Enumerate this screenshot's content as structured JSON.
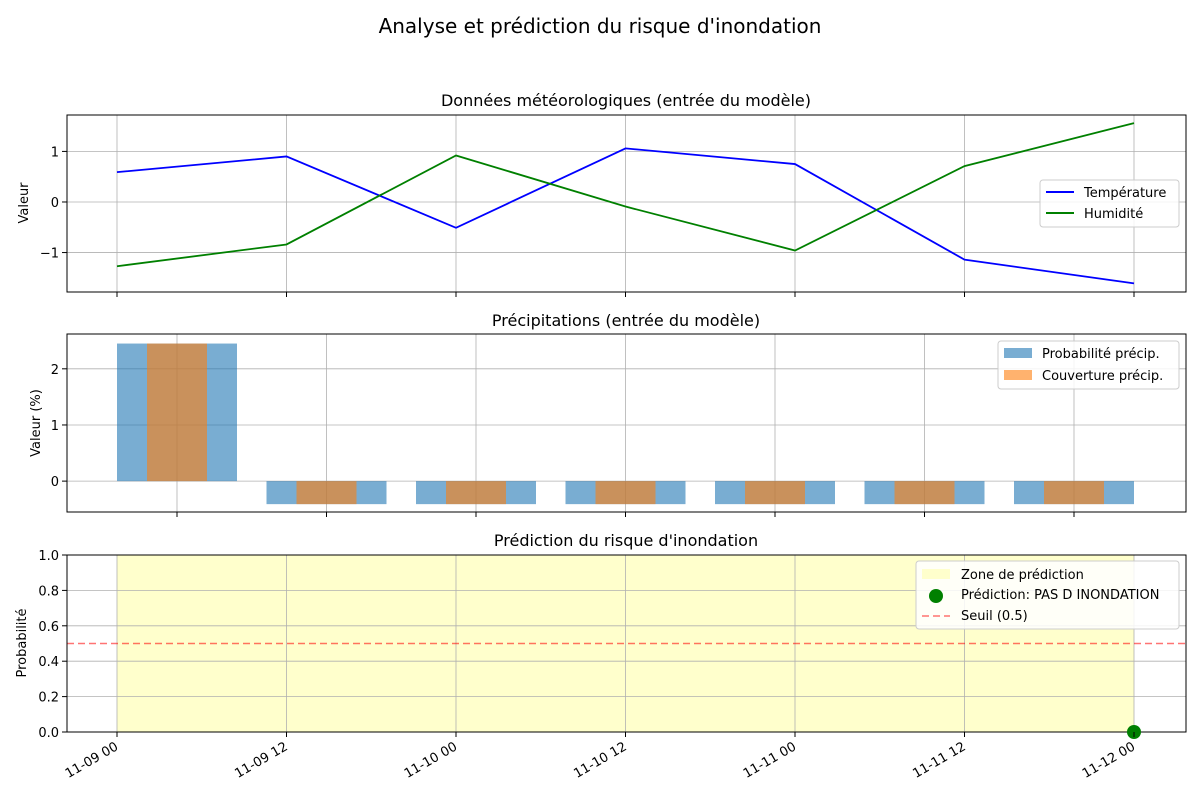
{
  "suptitle": "Analyse et prédiction du risque d'inondation",
  "x_tick_labels": [
    "11-09 00",
    "11-09 12",
    "11-10 00",
    "11-10 12",
    "11-11 00",
    "11-11 12",
    "11-12 00"
  ],
  "chart_data": [
    {
      "type": "line",
      "title": "Données météorologiques (entrée du modèle)",
      "xlabel": "",
      "ylabel": "Valeur",
      "x": [
        "2024-11-09 00:00",
        "2024-11-09 12:00",
        "2024-11-10 00:00",
        "2024-11-10 12:00",
        "2024-11-11 00:00",
        "2024-11-11 12:00",
        "2024-11-12 00:00"
      ],
      "ylim": [
        -1.78,
        1.72
      ],
      "yticks": [
        -1,
        0,
        1
      ],
      "ytick_labels": [
        "−1",
        "0",
        "1"
      ],
      "grid": true,
      "legend_position": "center-right",
      "series": [
        {
          "name": "Température",
          "color": "#0000ff",
          "values": [
            0.59,
            0.9,
            -0.51,
            1.06,
            0.75,
            -1.14,
            -1.61
          ]
        },
        {
          "name": "Humidité",
          "color": "#008000",
          "values": [
            -1.27,
            -0.84,
            0.92,
            -0.09,
            -0.96,
            0.71,
            1.56
          ]
        }
      ]
    },
    {
      "type": "bar",
      "title": "Précipitations (entrée du modèle)",
      "xlabel": "",
      "ylabel": "Valeur (%)",
      "categories": [
        "2024-11-09 00:00",
        "2024-11-09 12:00",
        "2024-11-10 00:00",
        "2024-11-10 12:00",
        "2024-11-11 00:00",
        "2024-11-11 12:00",
        "2024-11-12 00:00"
      ],
      "ylim": [
        -0.55,
        2.62
      ],
      "yticks": [
        0,
        1,
        2
      ],
      "ytick_labels": [
        "0",
        "1",
        "2"
      ],
      "grid": true,
      "legend_position": "top-right",
      "series": [
        {
          "name": "Probabilité précip.",
          "color": "#1f77b4",
          "values": [
            2.45,
            -0.41,
            -0.41,
            -0.41,
            -0.41,
            -0.41,
            -0.41
          ]
        },
        {
          "name": "Couverture précip.",
          "color": "#ff7f0e",
          "values": [
            2.45,
            -0.41,
            -0.41,
            -0.41,
            -0.41,
            -0.41,
            -0.41
          ]
        }
      ]
    },
    {
      "type": "scatter",
      "title": "Prédiction du risque d'inondation",
      "xlabel": "",
      "ylabel": "Probabilité",
      "ylim": [
        0,
        1
      ],
      "yticks": [
        0,
        0.2,
        0.4,
        0.6,
        0.8,
        1.0
      ],
      "ytick_labels": [
        "0.0",
        "0.2",
        "0.4",
        "0.6",
        "0.8",
        "1.0"
      ],
      "grid": true,
      "legend_position": "top-right",
      "zone": {
        "label": "Zone de prédiction",
        "color": "#ffffcc",
        "start": "2024-11-09 00:00",
        "end": "2024-11-12 00:00"
      },
      "threshold": {
        "label": "Seuil (0.5)",
        "value": 0.5,
        "color": "#ff0000"
      },
      "points": [
        {
          "label": "Prédiction: PAS D INONDATION",
          "x": "2024-11-12 00:00",
          "y": 0.0,
          "color": "#008000"
        }
      ]
    }
  ]
}
